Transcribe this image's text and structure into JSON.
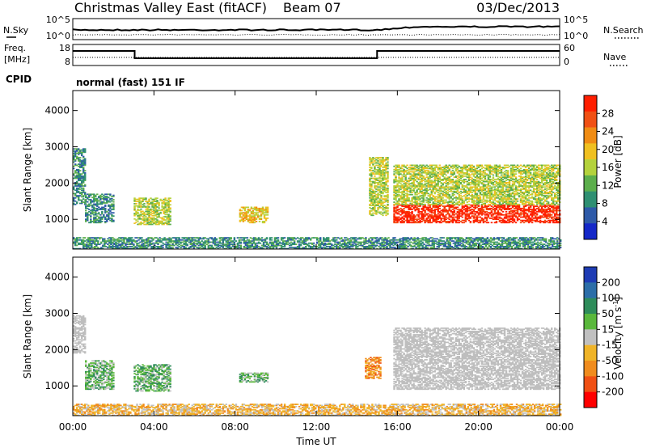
{
  "header": {
    "station": "Christmas Valley East (fitACF)",
    "beam": "Beam 07",
    "date": "03/Dec/2013"
  },
  "status_panels": {
    "nsky": {
      "label": "N.Sky",
      "ticks": [
        "10^5",
        "10^0"
      ]
    },
    "nsearch": {
      "label": "N.Search",
      "ticks": [
        "10^5",
        "10^0"
      ]
    },
    "freq": {
      "label_line1": "Freq.",
      "label_line2": "[MHz]",
      "ticks": [
        "18",
        "8"
      ]
    },
    "nave": {
      "label": "Nave",
      "ticks": [
        "60",
        "0"
      ]
    },
    "cpid": {
      "label": "CPID",
      "value": "normal (fast) 151 IF"
    }
  },
  "colors": {
    "power_scale": [
      "#1428c8",
      "#2e5aa8",
      "#2f8f72",
      "#5cae4c",
      "#b4d23c",
      "#f0c020",
      "#f08c14",
      "#f05014",
      "#ff1e00"
    ],
    "velocity_scale": [
      "#1e3cb4",
      "#2c6ea8",
      "#2e8c5a",
      "#5ab83c",
      "#c0c0c0",
      "#f0b428",
      "#f08c1e",
      "#f05014",
      "#ff0000"
    ],
    "ground_scatter": "#bebebe"
  },
  "chart_data": [
    {
      "type": "heatmap",
      "title": "",
      "quantity": "Power",
      "xlabel": "Time UT",
      "ylabel": "Slant Range [km]",
      "xlim": [
        "00:00",
        "24:00"
      ],
      "ylim": [
        180,
        4550
      ],
      "x_ticks": [
        "00:00",
        "04:00",
        "08:00",
        "12:00",
        "16:00",
        "20:00",
        "00:00"
      ],
      "y_ticks": [
        "1000",
        "2000",
        "3000",
        "4000"
      ],
      "colorbar": {
        "label": "Power [dB]",
        "ticks": [
          "4",
          "8",
          "12",
          "16",
          "20",
          "24",
          "28"
        ]
      },
      "echo_regions": [
        {
          "t_start": 0.0,
          "t_end": 0.6,
          "range_low": 1400,
          "range_high": 2950,
          "level": "12 dB"
        },
        {
          "t_start": 0.6,
          "t_end": 2.0,
          "range_low": 900,
          "range_high": 1700,
          "level": "12 dB"
        },
        {
          "t_start": 3.0,
          "t_end": 4.8,
          "range_low": 850,
          "range_high": 1600,
          "level": "16 dB"
        },
        {
          "t_start": 8.2,
          "t_end": 9.6,
          "range_low": 900,
          "range_high": 1350,
          "level": "20 dB"
        },
        {
          "t_start": 14.6,
          "t_end": 15.5,
          "range_low": 1100,
          "range_high": 2700,
          "level": "16 dB"
        },
        {
          "t_start": 15.8,
          "t_end": 24.0,
          "range_low": 900,
          "range_high": 1400,
          "level": "28 dB"
        },
        {
          "t_start": 15.8,
          "t_end": 24.0,
          "range_low": 1400,
          "range_high": 2500,
          "level": "16 dB"
        },
        {
          "t_start": 0.0,
          "t_end": 24.0,
          "range_low": 180,
          "range_high": 500,
          "level": "12 dB"
        }
      ]
    },
    {
      "type": "heatmap",
      "title": "",
      "quantity": "Velocity",
      "xlabel": "Time UT",
      "ylabel": "Slant Range [km]",
      "xlim": [
        "00:00",
        "24:00"
      ],
      "ylim": [
        180,
        4550
      ],
      "x_ticks": [
        "00:00",
        "04:00",
        "08:00",
        "12:00",
        "16:00",
        "20:00",
        "00:00"
      ],
      "y_ticks": [
        "1000",
        "2000",
        "3000",
        "4000"
      ],
      "colorbar": {
        "label": "Velocity [m s-1]",
        "ticks": [
          "200",
          "100",
          "50",
          "15",
          "-15",
          "-50",
          "-100",
          "-200"
        ]
      },
      "echo_regions": [
        {
          "t_start": 0.0,
          "t_end": 0.6,
          "range_low": 1900,
          "range_high": 2950,
          "level": "ground scatter"
        },
        {
          "t_start": 0.6,
          "t_end": 2.0,
          "range_low": 900,
          "range_high": 1700,
          "level": "50 m/s"
        },
        {
          "t_start": 3.0,
          "t_end": 4.8,
          "range_low": 850,
          "range_high": 1600,
          "level": "50 m/s"
        },
        {
          "t_start": 8.2,
          "t_end": 9.6,
          "range_low": 1100,
          "range_high": 1350,
          "level": "50 m/s"
        },
        {
          "t_start": 14.4,
          "t_end": 15.2,
          "range_low": 1200,
          "range_high": 1800,
          "level": "-100 m/s"
        },
        {
          "t_start": 15.8,
          "t_end": 24.0,
          "range_low": 900,
          "range_high": 2600,
          "level": "ground scatter"
        },
        {
          "t_start": 0.0,
          "t_end": 24.0,
          "range_low": 180,
          "range_high": 500,
          "level": "-50 m/s"
        }
      ]
    }
  ]
}
